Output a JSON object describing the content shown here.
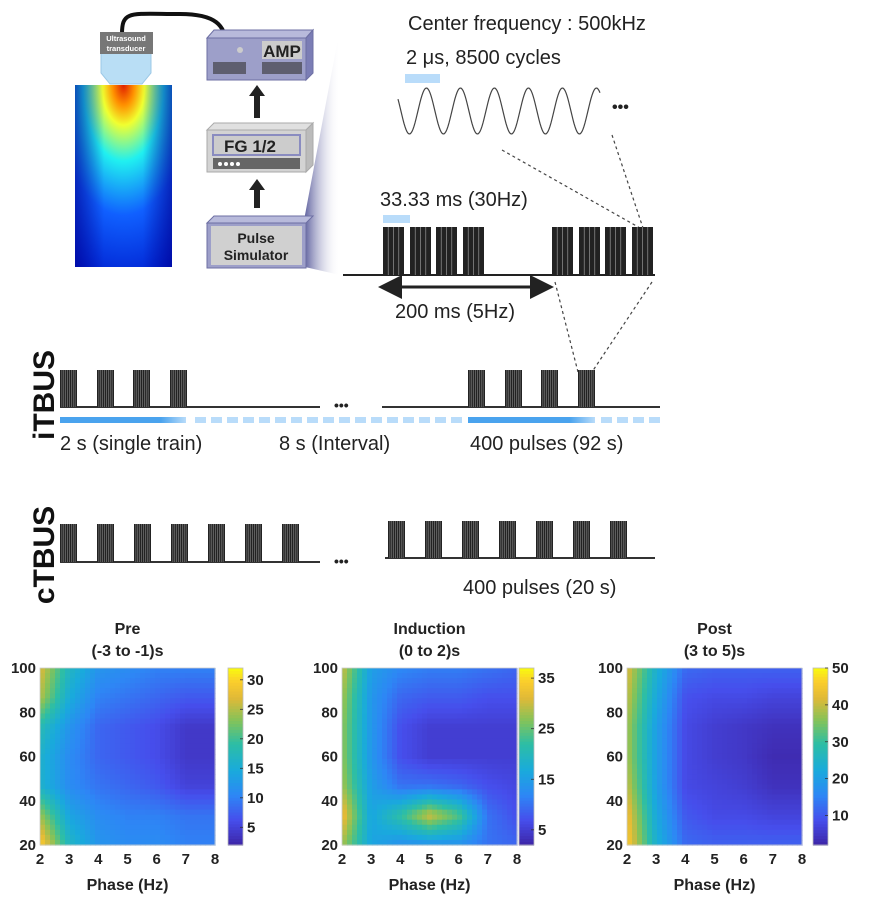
{
  "setup": {
    "transducer_label_1": "Ultrasound",
    "transducer_label_2": "transducer",
    "amp_label": "AMP",
    "fg_label": "FG 1/2",
    "pulse_label_1": "Pulse",
    "pulse_label_2": "Simulator"
  },
  "waveform": {
    "center_frequency": "Center frequency : 500kHz",
    "cycle_info": "2 μs, 8500 cycles",
    "burst_period": "33.33 ms (30Hz)",
    "train_period": "200 ms (5Hz)",
    "ellipsis": "•••"
  },
  "itbus": {
    "label": "iTBUS",
    "train": "2 s (single train)",
    "interval": "8 s (Interval)",
    "total": "400 pulses (92 s)",
    "ellipsis": "•••"
  },
  "ctbus": {
    "label": "cTBUS",
    "total": "400 pulses (20 s)",
    "ellipsis": "•••"
  },
  "colors": {
    "pulse": "#222222",
    "blue_bar": "#4aa3ee",
    "blue_dash": "#b9dcfa",
    "device_fill": "#9d9fc9",
    "device_face": "#c9c9d3"
  },
  "chart_data": [
    {
      "type": "heatmap",
      "title_1": "Pre",
      "title_2": "(-3 to -1)s",
      "xlabel": "Phase (Hz)",
      "ylabel": "",
      "x": [
        2,
        3,
        4,
        5,
        6,
        7,
        8
      ],
      "y": [
        100,
        87,
        73,
        60,
        47,
        33,
        20
      ],
      "xticks": [
        "2",
        "3",
        "4",
        "5",
        "6",
        "7",
        "8"
      ],
      "yticks": [
        "20",
        "40",
        "60",
        "80",
        "100"
      ],
      "colormap": "parula",
      "clim": [
        2,
        32
      ],
      "colorbar_ticks": [
        "5",
        "10",
        "15",
        "20",
        "25",
        "30"
      ],
      "values": [
        [
          27,
          17,
          12,
          11,
          10,
          10,
          10
        ],
        [
          25,
          15,
          10,
          9,
          8,
          7,
          7
        ],
        [
          18,
          12,
          8,
          7,
          6,
          4,
          4
        ],
        [
          16,
          11,
          8,
          7,
          6,
          4,
          4
        ],
        [
          16,
          11,
          9,
          8,
          7,
          5,
          5
        ],
        [
          24,
          14,
          11,
          10,
          10,
          9,
          9
        ],
        [
          30,
          17,
          12,
          11,
          11,
          10,
          10
        ]
      ]
    },
    {
      "type": "heatmap",
      "title_1": "Induction",
      "title_2": "(0 to 2)s",
      "xlabel": "Phase (Hz)",
      "ylabel": "",
      "x": [
        2,
        3,
        4,
        5,
        6,
        7,
        8
      ],
      "y": [
        100,
        87,
        73,
        60,
        47,
        33,
        20
      ],
      "xticks": [
        "2",
        "3",
        "4",
        "5",
        "6",
        "7",
        "8"
      ],
      "yticks": [
        "20",
        "40",
        "60",
        "80",
        "100"
      ],
      "colormap": "parula",
      "clim": [
        2,
        37
      ],
      "colorbar_ticks": [
        "5",
        "15",
        "25",
        "35"
      ],
      "values": [
        [
          30,
          15,
          12,
          11,
          11,
          10,
          9
        ],
        [
          28,
          14,
          9,
          8,
          8,
          7,
          7
        ],
        [
          27,
          14,
          7,
          5,
          5,
          5,
          5
        ],
        [
          27,
          14,
          7,
          5,
          5,
          5,
          5
        ],
        [
          28,
          15,
          10,
          10,
          9,
          7,
          6
        ],
        [
          33,
          16,
          22,
          30,
          24,
          10,
          7
        ],
        [
          28,
          16,
          13,
          13,
          13,
          10,
          9
        ]
      ]
    },
    {
      "type": "heatmap",
      "title_1": "Post",
      "title_2": "(3 to 5)s",
      "xlabel": "Phase (Hz)",
      "ylabel": "",
      "x": [
        2,
        3,
        4,
        5,
        6,
        7,
        8
      ],
      "y": [
        100,
        87,
        73,
        60,
        47,
        33,
        20
      ],
      "xticks": [
        "2",
        "3",
        "4",
        "5",
        "6",
        "7",
        "8"
      ],
      "yticks": [
        "20",
        "40",
        "60",
        "80",
        "100"
      ],
      "colormap": "parula",
      "clim": [
        2,
        50
      ],
      "colorbar_ticks": [
        "10",
        "20",
        "30",
        "40",
        "50"
      ],
      "values": [
        [
          42,
          24,
          12,
          11,
          11,
          11,
          11
        ],
        [
          40,
          22,
          9,
          8,
          8,
          7,
          7
        ],
        [
          38,
          20,
          8,
          6,
          5,
          4,
          4
        ],
        [
          38,
          20,
          8,
          6,
          5,
          3,
          3
        ],
        [
          40,
          20,
          8,
          7,
          6,
          4,
          4
        ],
        [
          44,
          22,
          10,
          8,
          8,
          7,
          7
        ],
        [
          46,
          24,
          12,
          11,
          11,
          11,
          11
        ]
      ]
    }
  ]
}
